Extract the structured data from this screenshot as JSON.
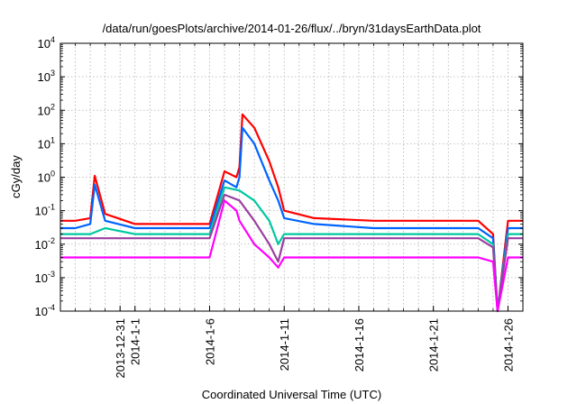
{
  "chart_data": {
    "type": "line",
    "title": "/data/run/goesPlots/archive/2014-01-26/flux/../bryn/31daysEarthData.plot",
    "xlabel": "Coordinated Universal Time (UTC)",
    "ylabel": "cGy/day",
    "y_scale": "log",
    "ylim": [
      0.0001,
      10000
    ],
    "y_ticks": [
      {
        "value": 0.0001,
        "base": "10",
        "exp": "-4"
      },
      {
        "value": 0.001,
        "base": "10",
        "exp": "-3"
      },
      {
        "value": 0.01,
        "base": "10",
        "exp": "-2"
      },
      {
        "value": 0.1,
        "base": "10",
        "exp": "-1"
      },
      {
        "value": 1,
        "base": "10",
        "exp": "0"
      },
      {
        "value": 10,
        "base": "10",
        "exp": "1"
      },
      {
        "value": 100,
        "base": "10",
        "exp": "2"
      },
      {
        "value": 1000,
        "base": "10",
        "exp": "3"
      },
      {
        "value": 10000,
        "base": "10",
        "exp": "4"
      }
    ],
    "x_range": [
      "2013-12-27",
      "2014-01-27"
    ],
    "x_ticks": [
      "2013-12-31",
      "2014-1-1",
      "2014-1-6",
      "2014-1-11",
      "2014-1-16",
      "2014-1-21",
      "2014-1-26"
    ],
    "grid": true,
    "series": [
      {
        "color": "#ff0000",
        "x": [
          "2013-12-27",
          "2013-12-28",
          "2013-12-29",
          "2013-12-29.3",
          "2013-12-30",
          "2014-01-01",
          "2014-01-04",
          "2014-01-06",
          "2014-01-07",
          "2014-01-07.8",
          "2014-01-08",
          "2014-01-08.2",
          "2014-01-09",
          "2014-01-10",
          "2014-01-10.6",
          "2014-01-11",
          "2014-01-13",
          "2014-01-17",
          "2014-01-21",
          "2014-01-24",
          "2014-01-25",
          "2014-01-25.3",
          "2014-01-26",
          "2014-01-27"
        ],
        "y": [
          0.05,
          0.05,
          0.06,
          1.1,
          0.08,
          0.04,
          0.04,
          0.04,
          1.5,
          1.0,
          2.0,
          75,
          30,
          3.0,
          0.5,
          0.1,
          0.06,
          0.05,
          0.05,
          0.05,
          0.02,
          0.0001,
          0.05,
          0.05
        ]
      },
      {
        "color": "#0064ff",
        "x": [
          "2013-12-27",
          "2013-12-28",
          "2013-12-29",
          "2013-12-29.3",
          "2013-12-30",
          "2014-01-01",
          "2014-01-04",
          "2014-01-06",
          "2014-01-07",
          "2014-01-07.8",
          "2014-01-08",
          "2014-01-08.2",
          "2014-01-09",
          "2014-01-10",
          "2014-01-10.6",
          "2014-01-11",
          "2014-01-13",
          "2014-01-17",
          "2014-01-21",
          "2014-01-24",
          "2014-01-25",
          "2014-01-25.3",
          "2014-01-26",
          "2014-01-27"
        ],
        "y": [
          0.03,
          0.03,
          0.04,
          0.6,
          0.05,
          0.03,
          0.03,
          0.03,
          0.8,
          0.5,
          1.0,
          30,
          10,
          0.8,
          0.2,
          0.06,
          0.04,
          0.03,
          0.03,
          0.03,
          0.015,
          0.0001,
          0.03,
          0.03
        ]
      },
      {
        "color": "#00c8a0",
        "x": [
          "2013-12-27",
          "2013-12-29",
          "2013-12-30",
          "2014-01-01",
          "2014-01-06",
          "2014-01-07",
          "2014-01-08",
          "2014-01-09",
          "2014-01-10",
          "2014-01-10.6",
          "2014-01-11",
          "2014-01-13",
          "2014-01-17",
          "2014-01-21",
          "2014-01-24",
          "2014-01-25",
          "2014-01-25.3",
          "2014-01-26",
          "2014-01-27"
        ],
        "y": [
          0.02,
          0.02,
          0.03,
          0.02,
          0.02,
          0.5,
          0.4,
          0.2,
          0.05,
          0.01,
          0.02,
          0.02,
          0.02,
          0.02,
          0.02,
          0.01,
          0.0001,
          0.02,
          0.02
        ]
      },
      {
        "color": "#9b3fa0",
        "x": [
          "2013-12-27",
          "2013-12-30",
          "2014-01-01",
          "2014-01-06",
          "2014-01-07",
          "2014-01-08",
          "2014-01-09",
          "2014-01-10",
          "2014-01-10.6",
          "2014-01-11",
          "2014-01-13",
          "2014-01-17",
          "2014-01-21",
          "2014-01-24",
          "2014-01-25",
          "2014-01-25.3",
          "2014-01-26",
          "2014-01-27"
        ],
        "y": [
          0.015,
          0.015,
          0.015,
          0.015,
          0.3,
          0.2,
          0.05,
          0.01,
          0.003,
          0.015,
          0.015,
          0.015,
          0.015,
          0.015,
          0.008,
          0.0001,
          0.015,
          0.015
        ]
      },
      {
        "color": "#ff00ff",
        "x": [
          "2013-12-27",
          "2013-12-30",
          "2014-01-01",
          "2014-01-06",
          "2014-01-07",
          "2014-01-07.8",
          "2014-01-08",
          "2014-01-09",
          "2014-01-10",
          "2014-01-10.6",
          "2014-01-11",
          "2014-01-13",
          "2014-01-17",
          "2014-01-21",
          "2014-01-24",
          "2014-01-25",
          "2014-01-25.3",
          "2014-01-26",
          "2014-01-27"
        ],
        "y": [
          0.004,
          0.004,
          0.004,
          0.004,
          0.2,
          0.1,
          0.05,
          0.01,
          0.004,
          0.002,
          0.004,
          0.004,
          0.004,
          0.004,
          0.004,
          0.003,
          0.0001,
          0.004,
          0.004
        ]
      }
    ]
  }
}
